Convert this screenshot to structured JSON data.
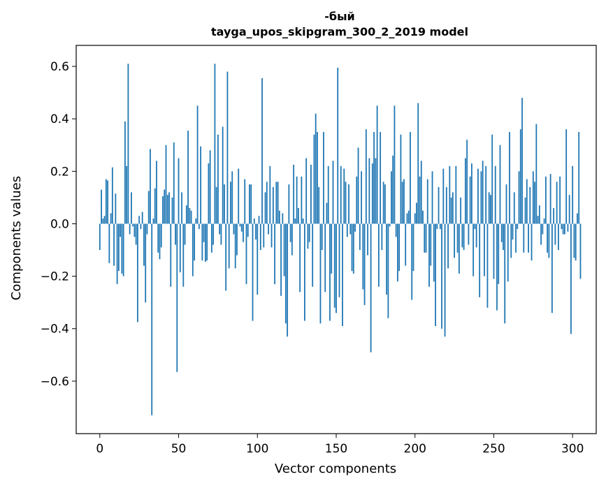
{
  "chart_data": {
    "type": "bar",
    "title_line1": "-бый",
    "title_line2": "tayga_upos_skipgram_300_2_2019 model",
    "xlabel": "Vector components",
    "ylabel": "Components values",
    "xlim": [
      -15,
      315
    ],
    "ylim": [
      -0.8,
      0.68
    ],
    "x_ticks": [
      0,
      50,
      100,
      150,
      200,
      250,
      300
    ],
    "x_tick_labels": [
      "0",
      "50",
      "100",
      "150",
      "200",
      "250",
      "300"
    ],
    "y_ticks": [
      -0.6,
      -0.4,
      -0.2,
      0.0,
      0.2,
      0.4,
      0.6
    ],
    "y_tick_labels": [
      "−0.6",
      "−0.4",
      "−0.2",
      "0.0",
      "0.2",
      "0.4",
      "0.6"
    ],
    "bar_color": "#1f77b4",
    "values": [
      -0.1,
      0.13,
      0.02,
      0.03,
      0.17,
      0.165,
      -0.15,
      0.04,
      0.215,
      -0.16,
      0.115,
      -0.23,
      -0.18,
      -0.05,
      -0.19,
      -0.2,
      0.39,
      0.22,
      0.61,
      -0.04,
      0.12,
      -0.01,
      -0.05,
      -0.08,
      -0.375,
      0.03,
      -0.02,
      0.045,
      -0.16,
      -0.3,
      -0.04,
      0.125,
      0.285,
      -0.73,
      0.02,
      0.135,
      0.24,
      -0.11,
      -0.135,
      -0.09,
      0.105,
      0.13,
      0.3,
      0.11,
      0.12,
      -0.24,
      0.1,
      0.31,
      -0.08,
      -0.565,
      0.25,
      -0.185,
      0.12,
      -0.24,
      -0.08,
      0.07,
      0.355,
      0.06,
      0.05,
      -0.2,
      -0.14,
      0.02,
      0.45,
      -0.02,
      0.295,
      -0.14,
      -0.07,
      -0.145,
      -0.14,
      0.23,
      0.28,
      -0.11,
      -0.08,
      0.61,
      0.14,
      0.34,
      -0.04,
      -0.08,
      0.37,
      0.15,
      -0.255,
      0.58,
      -0.17,
      0.16,
      0.2,
      -0.04,
      -0.17,
      -0.12,
      0.21,
      -0.01,
      -0.03,
      -0.07,
      0.17,
      -0.23,
      -0.05,
      0.15,
      0.15,
      -0.37,
      0.02,
      -0.06,
      -0.27,
      0.03,
      -0.1,
      0.555,
      -0.09,
      0.12,
      0.16,
      -0.04,
      0.22,
      -0.09,
      0.14,
      -0.23,
      0.16,
      0.16,
      0.05,
      -0.275,
      0.04,
      -0.2,
      -0.38,
      -0.43,
      0.15,
      -0.07,
      -0.12,
      0.225,
      0.02,
      0.18,
      0.06,
      -0.26,
      0.18,
      0.02,
      -0.37,
      0.25,
      -0.095,
      -0.07,
      0.225,
      -0.24,
      0.34,
      0.42,
      0.35,
      0.14,
      -0.38,
      -0.1,
      0.35,
      -0.26,
      0.08,
      0.22,
      -0.37,
      -0.19,
      0.24,
      -0.32,
      -0.34,
      0.595,
      -0.28,
      0.22,
      -0.39,
      0.21,
      0.16,
      -0.05,
      0.15,
      -0.04,
      -0.18,
      -0.19,
      -0.03,
      0.18,
      0.29,
      -0.1,
      0.2,
      -0.25,
      -0.31,
      0.36,
      -0.12,
      0.25,
      -0.49,
      0.23,
      0.35,
      0.25,
      0.45,
      -0.24,
      0.35,
      -0.1,
      0.16,
      0.15,
      -0.27,
      -0.36,
      -0.01,
      0.2,
      0.26,
      0.45,
      -0.05,
      -0.22,
      -0.18,
      0.34,
      0.16,
      0.17,
      -0.16,
      0.04,
      0.05,
      0.35,
      -0.29,
      -0.18,
      0.04,
      0.08,
      0.46,
      0.18,
      0.24,
      0.05,
      -0.11,
      -0.11,
      0.17,
      -0.24,
      -0.16,
      0.2,
      -0.22,
      -0.39,
      -0.02,
      0.14,
      -0.02,
      -0.4,
      0.21,
      -0.43,
      0.14,
      -0.17,
      0.22,
      0.1,
      0.12,
      -0.13,
      0.22,
      -0.11,
      -0.19,
      0.1,
      -0.09,
      -0.1,
      0.25,
      0.32,
      -0.08,
      0.18,
      0.23,
      -0.2,
      -0.02,
      -0.09,
      0.21,
      -0.28,
      0.2,
      0.24,
      -0.2,
      0.22,
      -0.32,
      0.12,
      0.11,
      0.34,
      -0.21,
      0.22,
      -0.33,
      -0.23,
      0.3,
      -0.07,
      -0.1,
      -0.38,
      0.15,
      -0.22,
      0.35,
      -0.13,
      -0.06,
      0.12,
      -0.11,
      -0.02,
      0.2,
      0.36,
      0.48,
      -0.11,
      0.1,
      0.17,
      -0.11,
      0.14,
      -0.14,
      0.2,
      0.16,
      0.38,
      0.03,
      0.07,
      -0.08,
      -0.04,
      0.02,
      0.18,
      -0.11,
      -0.13,
      0.19,
      -0.34,
      0.06,
      -0.08,
      0.16,
      -0.1,
      0.18,
      -0.02,
      -0.04,
      -0.04,
      0.36,
      -0.03,
      0.11,
      -0.42,
      0.22,
      -0.13,
      -0.14,
      0.04,
      0.35,
      -0.21
    ]
  }
}
